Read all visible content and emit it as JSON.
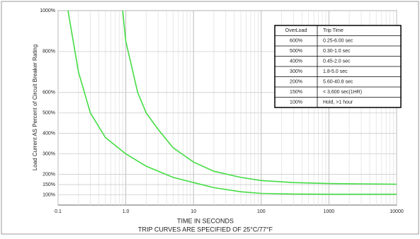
{
  "chart_data": {
    "type": "line",
    "ylabel": "Load Current AS Percent of Circuit Breaker Rating",
    "xlabel": "TIME IN SECONDS",
    "caption": "TRIP CURVES ARE SPECIFIED OF 25°C/77°F",
    "log_x": true,
    "grid": true,
    "xlim": [
      0.1,
      10000
    ],
    "xticks": [
      0.1,
      {
        "value": 1,
        "label": "1.0"
      },
      10,
      100,
      1000,
      10000
    ],
    "ylim": [
      50,
      1000
    ],
    "yticks": [
      {
        "value": 100,
        "label": "100%"
      },
      {
        "value": 150,
        "label": "150%"
      },
      {
        "value": 200,
        "label": "200%"
      },
      {
        "value": 300,
        "label": "300%"
      },
      {
        "value": 400,
        "label": "400%"
      },
      {
        "value": 500,
        "label": "500%"
      },
      {
        "value": 600,
        "label": "600%"
      },
      {
        "value": 800,
        "label": "800%"
      },
      {
        "value": 1000,
        "label": "1000%"
      }
    ],
    "series": [
      {
        "color": "#44dd44",
        "x": [
          0.14,
          0.2,
          0.3,
          0.5,
          1,
          2,
          5,
          10,
          20,
          50,
          100,
          300,
          1000,
          10000
        ],
        "values": [
          1000,
          700,
          500,
          380,
          300,
          240,
          185,
          160,
          135,
          115,
          107,
          104,
          103,
          103
        ]
      },
      {
        "color": "#44dd44",
        "x": [
          0.9,
          1,
          1.5,
          2,
          3,
          5,
          10,
          20,
          50,
          100,
          300,
          1000,
          10000
        ],
        "values": [
          1000,
          850,
          600,
          500,
          420,
          330,
          260,
          215,
          185,
          170,
          160,
          155,
          152
        ]
      }
    ],
    "table": {
      "header": [
        "OverLoad",
        "Trip Time"
      ],
      "rows": [
        [
          "600%",
          "0.25-6.00 sec"
        ],
        [
          "500%",
          "0.30-1.0 sec"
        ],
        [
          "400%",
          "0.45-2.0 sec"
        ],
        [
          "300%",
          "1.8-5.0 sec"
        ],
        [
          "200%",
          "5.60-40.8 sec"
        ],
        [
          "150%",
          "< 3,600 sec(1HR)"
        ],
        [
          "100%",
          "Hold, >1 hour"
        ]
      ]
    }
  }
}
